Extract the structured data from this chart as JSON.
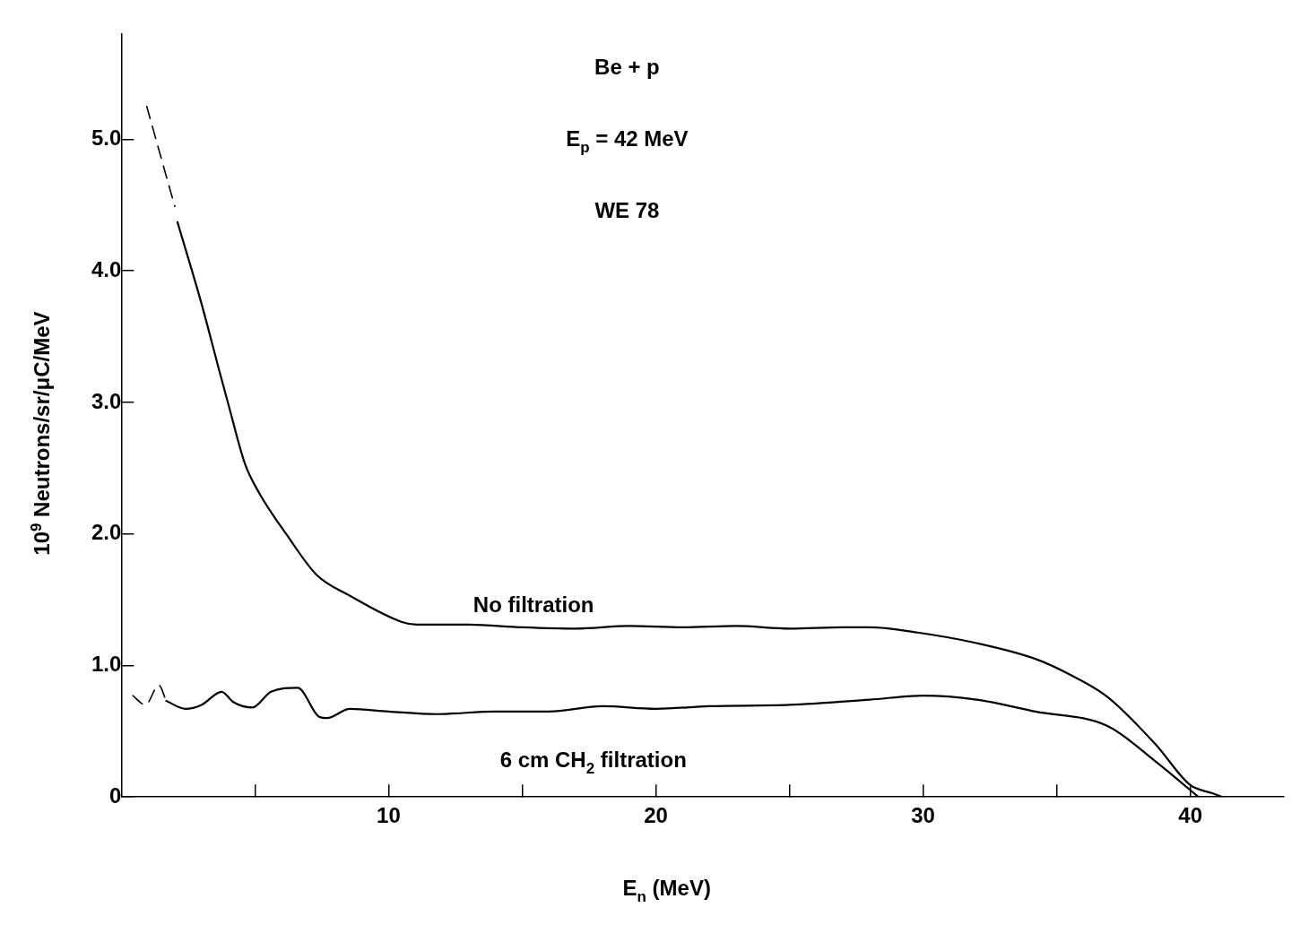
{
  "chart_data": {
    "type": "line",
    "annotations": [
      "Be + p",
      "E$_{p}$ = 42 MeV",
      "WE 78"
    ],
    "xlabel": "E$_{n}$ (MeV)",
    "ylabel": "10$^{9}$ Neutrons/sr/μC/MeV",
    "xlim": [
      0,
      43.5
    ],
    "ylim": [
      0,
      5.8
    ],
    "xticks": [
      {
        "value": 5,
        "label": null
      },
      10,
      {
        "value": 15,
        "label": null
      },
      20,
      {
        "value": 25,
        "label": null
      },
      30,
      {
        "value": 35,
        "label": null
      },
      40
    ],
    "yticks": [
      0,
      {
        "value": 1,
        "label": "1.0"
      },
      {
        "value": 2,
        "label": "2.0"
      },
      {
        "value": 3,
        "label": "3.0"
      },
      {
        "value": 4,
        "label": "4.0"
      },
      {
        "value": 5,
        "label": "5.0"
      }
    ],
    "grid": false,
    "legend": false,
    "marker": "none",
    "series": [
      {
        "color": "#000000",
        "line_style": "dashed",
        "x": [
          0.95,
          1.5,
          2.0
        ],
        "values": [
          5.25,
          4.85,
          4.49
        ]
      },
      {
        "name": "No filtration",
        "color": "#000000",
        "line_style": "solid",
        "x": [
          2.1,
          3.0,
          3.6,
          4.05,
          4.63,
          5.16,
          6.2,
          7.3,
          8.55,
          10.5,
          11.05,
          13,
          15,
          17,
          19,
          21,
          23,
          25,
          27,
          28,
          29.8,
          32,
          34.2,
          35.5,
          36.9,
          38.7,
          40.0,
          40.8,
          41.2
        ],
        "values": [
          4.37,
          3.75,
          3.29,
          2.95,
          2.53,
          2.31,
          1.99,
          1.69,
          1.53,
          1.33,
          1.31,
          1.31,
          1.29,
          1.28,
          1.3,
          1.29,
          1.3,
          1.28,
          1.29,
          1.29,
          1.25,
          1.17,
          1.05,
          0.93,
          0.76,
          0.4,
          0.09,
          0.03,
          0
        ]
      },
      {
        "color": "#000000",
        "line_style": "dashed",
        "x": [
          0.43,
          0.9,
          1.4,
          1.68
        ],
        "values": [
          0.77,
          0.7,
          0.85,
          0.73
        ]
      },
      {
        "name": "6 cm CH$_{2}$ filtration",
        "color": "#000000",
        "line_style": "solid",
        "x": [
          1.68,
          2.4,
          3.0,
          3.75,
          4.2,
          4.9,
          5.6,
          6.6,
          7.4,
          7.7,
          8.55,
          10.0,
          11.8,
          14,
          16,
          18,
          20,
          22,
          25,
          28,
          30,
          32,
          34.2,
          36.9,
          38.7,
          39.6,
          40.3
        ],
        "values": [
          0.73,
          0.67,
          0.7,
          0.8,
          0.72,
          0.68,
          0.8,
          0.83,
          0.61,
          0.6,
          0.67,
          0.65,
          0.63,
          0.65,
          0.65,
          0.69,
          0.67,
          0.69,
          0.7,
          0.74,
          0.77,
          0.74,
          0.65,
          0.54,
          0.27,
          0.12,
          0
        ]
      }
    ]
  }
}
